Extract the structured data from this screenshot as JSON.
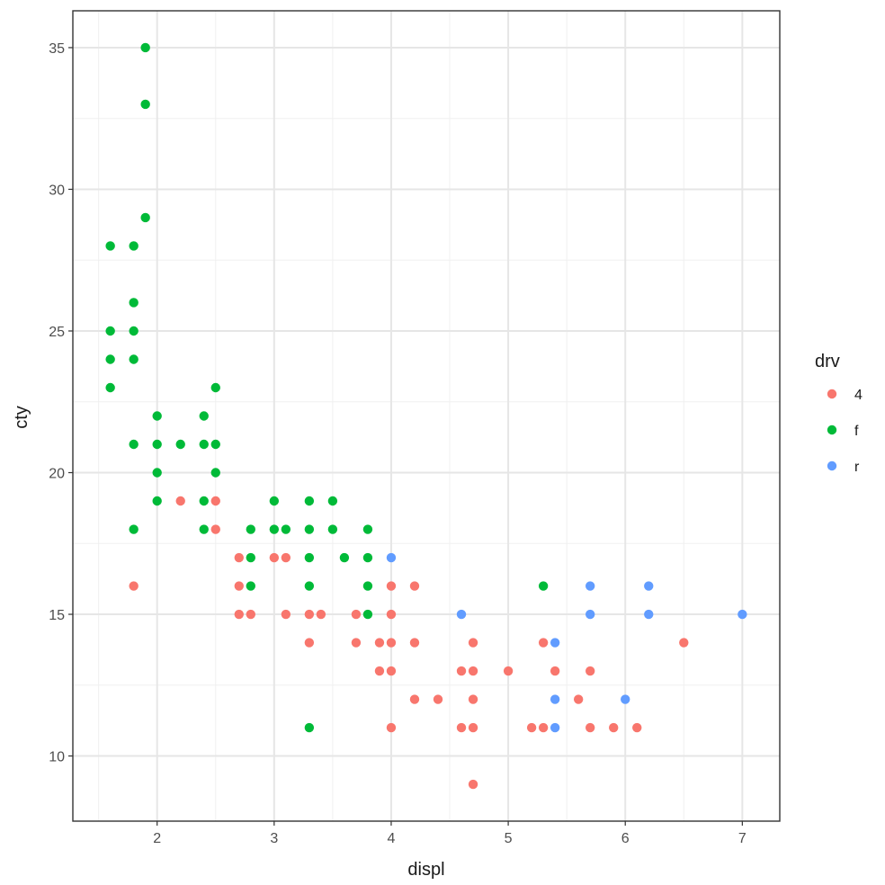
{
  "chart_data": {
    "type": "scatter",
    "xlabel": "displ",
    "ylabel": "cty",
    "xlim": [
      1.28,
      7.32
    ],
    "ylim": [
      7.7,
      36.3
    ],
    "x_ticks": [
      2,
      3,
      4,
      5,
      6,
      7
    ],
    "y_ticks": [
      10,
      15,
      20,
      25,
      30,
      35
    ],
    "grid": true,
    "theme": "bw",
    "legend": {
      "title": "drv",
      "position": "right"
    },
    "series": [
      {
        "name": "4",
        "color": "#F8766D",
        "points": [
          [
            1.8,
            16
          ],
          [
            2.2,
            19
          ],
          [
            2.5,
            19
          ],
          [
            2.5,
            18
          ],
          [
            2.7,
            17
          ],
          [
            2.7,
            16
          ],
          [
            2.7,
            15
          ],
          [
            2.8,
            15
          ],
          [
            3.0,
            17
          ],
          [
            3.1,
            17
          ],
          [
            3.1,
            15
          ],
          [
            3.3,
            15
          ],
          [
            3.3,
            14
          ],
          [
            3.4,
            15
          ],
          [
            3.7,
            15
          ],
          [
            3.7,
            14
          ],
          [
            3.9,
            14
          ],
          [
            3.9,
            13
          ],
          [
            4.0,
            16
          ],
          [
            4.0,
            15
          ],
          [
            4.0,
            14
          ],
          [
            4.0,
            13
          ],
          [
            4.0,
            11
          ],
          [
            4.2,
            16
          ],
          [
            4.2,
            14
          ],
          [
            4.2,
            12
          ],
          [
            4.4,
            12
          ],
          [
            4.6,
            13
          ],
          [
            4.6,
            11
          ],
          [
            4.7,
            14
          ],
          [
            4.7,
            13
          ],
          [
            4.7,
            12
          ],
          [
            4.7,
            11
          ],
          [
            4.7,
            9
          ],
          [
            5.0,
            13
          ],
          [
            5.2,
            11
          ],
          [
            5.3,
            14
          ],
          [
            5.3,
            11
          ],
          [
            5.4,
            13
          ],
          [
            5.6,
            12
          ],
          [
            5.7,
            13
          ],
          [
            5.7,
            11
          ],
          [
            5.9,
            11
          ],
          [
            6.1,
            11
          ],
          [
            6.5,
            14
          ]
        ]
      },
      {
        "name": "f",
        "color": "#00BA38",
        "points": [
          [
            1.6,
            28
          ],
          [
            1.6,
            25
          ],
          [
            1.6,
            24
          ],
          [
            1.6,
            23
          ],
          [
            1.8,
            28
          ],
          [
            1.8,
            26
          ],
          [
            1.8,
            25
          ],
          [
            1.8,
            24
          ],
          [
            1.8,
            21
          ],
          [
            1.8,
            18
          ],
          [
            1.9,
            35
          ],
          [
            1.9,
            33
          ],
          [
            1.9,
            29
          ],
          [
            2.0,
            22
          ],
          [
            2.0,
            21
          ],
          [
            2.0,
            20
          ],
          [
            2.0,
            19
          ],
          [
            2.2,
            21
          ],
          [
            2.4,
            22
          ],
          [
            2.4,
            21
          ],
          [
            2.4,
            19
          ],
          [
            2.4,
            18
          ],
          [
            2.5,
            23
          ],
          [
            2.5,
            21
          ],
          [
            2.5,
            20
          ],
          [
            2.8,
            18
          ],
          [
            2.8,
            17
          ],
          [
            2.8,
            16
          ],
          [
            3.0,
            19
          ],
          [
            3.0,
            18
          ],
          [
            3.1,
            18
          ],
          [
            3.3,
            19
          ],
          [
            3.3,
            18
          ],
          [
            3.3,
            17
          ],
          [
            3.3,
            16
          ],
          [
            3.3,
            11
          ],
          [
            3.5,
            19
          ],
          [
            3.5,
            18
          ],
          [
            3.6,
            17
          ],
          [
            3.8,
            18
          ],
          [
            3.8,
            17
          ],
          [
            3.8,
            16
          ],
          [
            3.8,
            15
          ],
          [
            5.3,
            16
          ]
        ]
      },
      {
        "name": "r",
        "color": "#619CFF",
        "points": [
          [
            4.0,
            17
          ],
          [
            4.6,
            15
          ],
          [
            5.4,
            14
          ],
          [
            5.4,
            12
          ],
          [
            5.4,
            11
          ],
          [
            5.7,
            16
          ],
          [
            5.7,
            15
          ],
          [
            6.0,
            12
          ],
          [
            6.2,
            16
          ],
          [
            6.2,
            15
          ],
          [
            7.0,
            15
          ]
        ]
      }
    ]
  }
}
